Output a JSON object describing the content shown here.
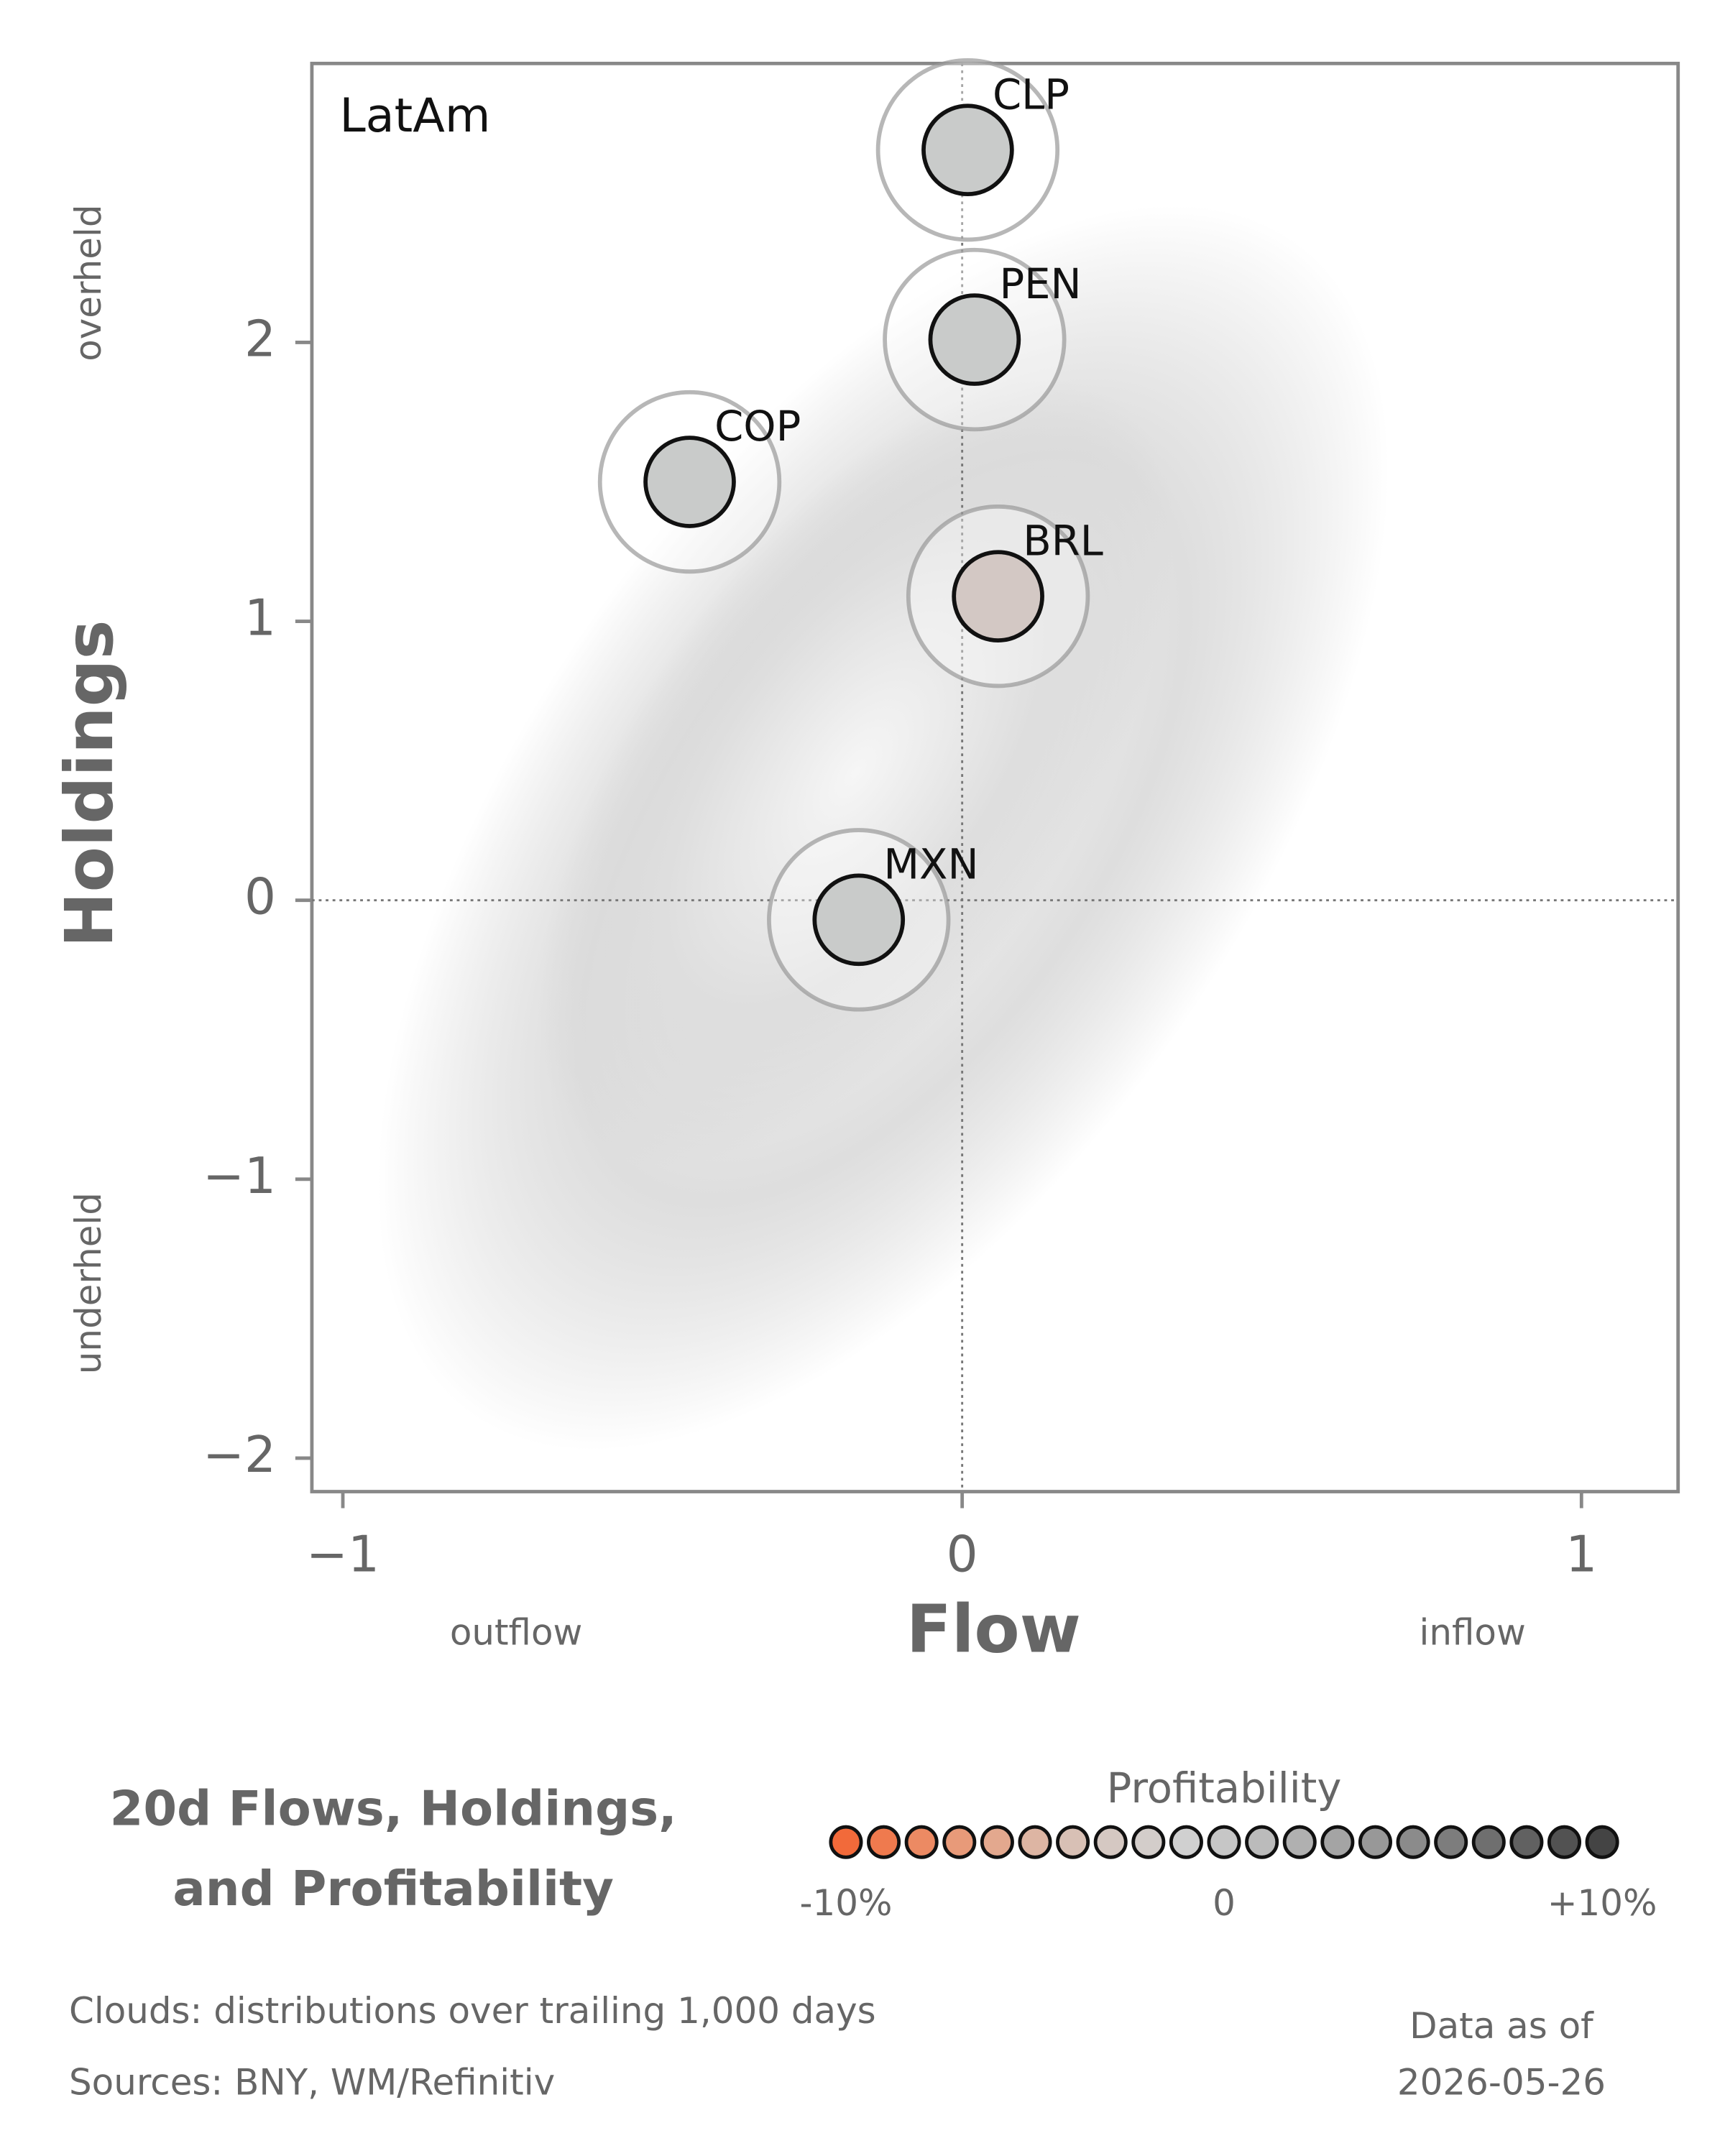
{
  "chart_data": {
    "type": "scatter",
    "panel_label": "LatAm",
    "title": [
      "20d Flows, Holdings,",
      "and Profitability"
    ],
    "x_label": "Flow",
    "y_label": "Holdings",
    "x_low_label": "outflow",
    "x_high_label": "inflow",
    "y_high_label": "overheld",
    "y_low_label": "underheld",
    "xlim": [
      -1.05,
      1.156
    ],
    "ylim": [
      -2.12,
      3.0
    ],
    "xticks": [
      {
        "value": -1,
        "label": "−1"
      },
      0,
      1
    ],
    "yticks": [
      {
        "value": -2,
        "label": "−2"
      },
      {
        "value": -1,
        "label": "−1"
      },
      0,
      1,
      2
    ],
    "points": [
      {
        "name": "CLP",
        "x": 0.009,
        "y": 2.69,
        "color": "#c9cbca"
      },
      {
        "name": "PEN",
        "x": 0.02,
        "y": 2.01,
        "color": "#c9cbca"
      },
      {
        "name": "COP",
        "x": -0.44,
        "y": 1.5,
        "color": "#c9cbca"
      },
      {
        "name": "BRL",
        "x": 0.058,
        "y": 1.09,
        "color": "#d3c8c4"
      },
      {
        "name": "MXN",
        "x": -0.167,
        "y": -0.07,
        "color": "#c9cbca"
      }
    ],
    "colorbar": {
      "title": "Profitability",
      "range": [
        -10,
        10
      ],
      "ticks": [
        {
          "value": -10,
          "label": "-10%"
        },
        0,
        {
          "value": 10,
          "label": "+10%"
        }
      ],
      "colors": [
        "#f26a3a",
        "#ef7a4e",
        "#ec8a63",
        "#e89a79",
        "#e3a88e",
        "#ddb5a3",
        "#d8c0b5",
        "#d5c8c2",
        "#d3cdca",
        "#d0d0d0",
        "#c6c6c6",
        "#bbbbbb",
        "#b0b0b0",
        "#a4a4a4",
        "#989898",
        "#8b8b8b",
        "#7d7d7d",
        "#6f6f6f",
        "#616161",
        "#525252",
        "#444444"
      ]
    },
    "footnotes": [
      "Clouds:  distributions over trailing 1,000 days",
      "Sources:  BNY, WM/Refinitiv"
    ],
    "as_of": [
      "Data as of",
      "2026-05-26"
    ]
  }
}
